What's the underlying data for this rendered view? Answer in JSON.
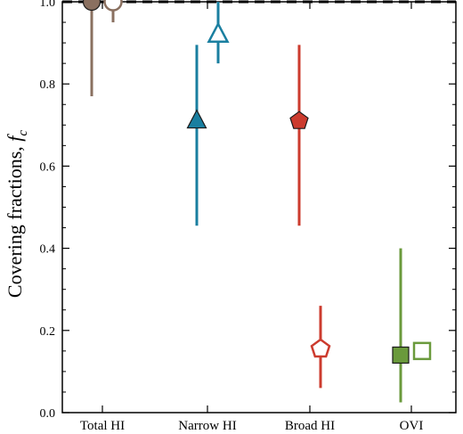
{
  "chart_data": {
    "type": "scatter",
    "title": "",
    "xlabel": "",
    "ylabel": "Covering fractions, ",
    "ylabel_symbol": "f",
    "ylabel_subscript": "c",
    "categories": [
      "Total HI",
      "Narrow HI",
      "Broad HI",
      "OVI"
    ],
    "ylim": [
      0.0,
      1.0
    ],
    "yticks": [
      "0.0",
      "0.2",
      "0.4",
      "0.6",
      "0.8",
      "1.0"
    ],
    "reference_line": {
      "y": 1.0,
      "style": "dashed",
      "color": "#000000"
    },
    "grid": false,
    "legend": "none",
    "series": [
      {
        "color": "#8a7060",
        "marker": "circle",
        "filled": true,
        "points": [
          {
            "category": "Total HI",
            "y": 1.0,
            "ylow": 0.77,
            "yhigh": 1.0
          }
        ]
      },
      {
        "color": "#8a7060",
        "marker": "circle",
        "filled": false,
        "points": [
          {
            "category": "Total HI",
            "y": 1.0,
            "ylow": 0.95,
            "yhigh": 1.0
          }
        ]
      },
      {
        "color": "#1a7fa0",
        "marker": "triangle",
        "filled": true,
        "points": [
          {
            "category": "Narrow HI",
            "y": 0.71,
            "ylow": 0.455,
            "yhigh": 0.895
          }
        ]
      },
      {
        "color": "#1a7fa0",
        "marker": "triangle",
        "filled": false,
        "points": [
          {
            "category": "Narrow HI",
            "y": 0.92,
            "ylow": 0.85,
            "yhigh": 1.0
          }
        ]
      },
      {
        "color": "#cc3b2e",
        "marker": "pentagon",
        "filled": true,
        "points": [
          {
            "category": "Broad HI",
            "y": 0.71,
            "ylow": 0.455,
            "yhigh": 0.895
          }
        ]
      },
      {
        "color": "#cc3b2e",
        "marker": "pentagon",
        "filled": false,
        "points": [
          {
            "category": "Broad HI",
            "y": 0.155,
            "ylow": 0.06,
            "yhigh": 0.26
          }
        ]
      },
      {
        "color": "#6a9a3c",
        "marker": "square",
        "filled": true,
        "points": [
          {
            "category": "OVI",
            "y": 0.14,
            "ylow": 0.025,
            "yhigh": 0.4
          }
        ]
      },
      {
        "color": "#6a9a3c",
        "marker": "square",
        "filled": false,
        "points": [
          {
            "category": "OVI",
            "y": 0.15,
            "ylow": 0.14,
            "yhigh": 0.17
          }
        ]
      }
    ]
  }
}
